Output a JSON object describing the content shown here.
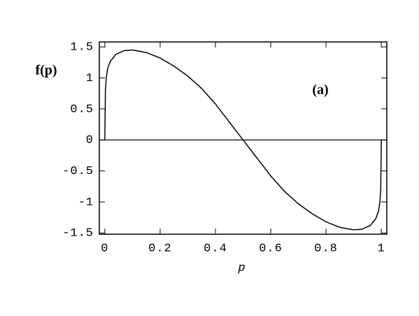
{
  "chart_data": {
    "type": "line",
    "annotation": "(a)",
    "ylabel": "f(p)",
    "xlabel": "p",
    "x": [
      0,
      0.002,
      0.005,
      0.01,
      0.02,
      0.04,
      0.07,
      0.1,
      0.15,
      0.2,
      0.25,
      0.3,
      0.35,
      0.4,
      0.45,
      0.5,
      0.55,
      0.6,
      0.65,
      0.7,
      0.75,
      0.8,
      0.85,
      0.9,
      0.93,
      0.96,
      0.98,
      0.99,
      0.995,
      0.998,
      1
    ],
    "values": [
      0,
      0.8,
      1.0,
      1.15,
      1.27,
      1.38,
      1.44,
      1.45,
      1.41,
      1.32,
      1.19,
      1.03,
      0.83,
      0.58,
      0.29,
      0,
      -0.29,
      -0.58,
      -0.83,
      -1.03,
      -1.19,
      -1.32,
      -1.41,
      -1.45,
      -1.44,
      -1.38,
      -1.27,
      -1.15,
      -1.0,
      -0.8,
      0
    ],
    "color": "#000000",
    "xlim": [
      -0.02,
      1.02
    ],
    "ylim": [
      -1.52,
      1.58
    ],
    "xticks": [
      0,
      0.2,
      0.4,
      0.6,
      0.8,
      1
    ],
    "yticks": [
      1.5,
      1,
      0.5,
      0,
      -0.5,
      -1,
      -1.5
    ]
  }
}
